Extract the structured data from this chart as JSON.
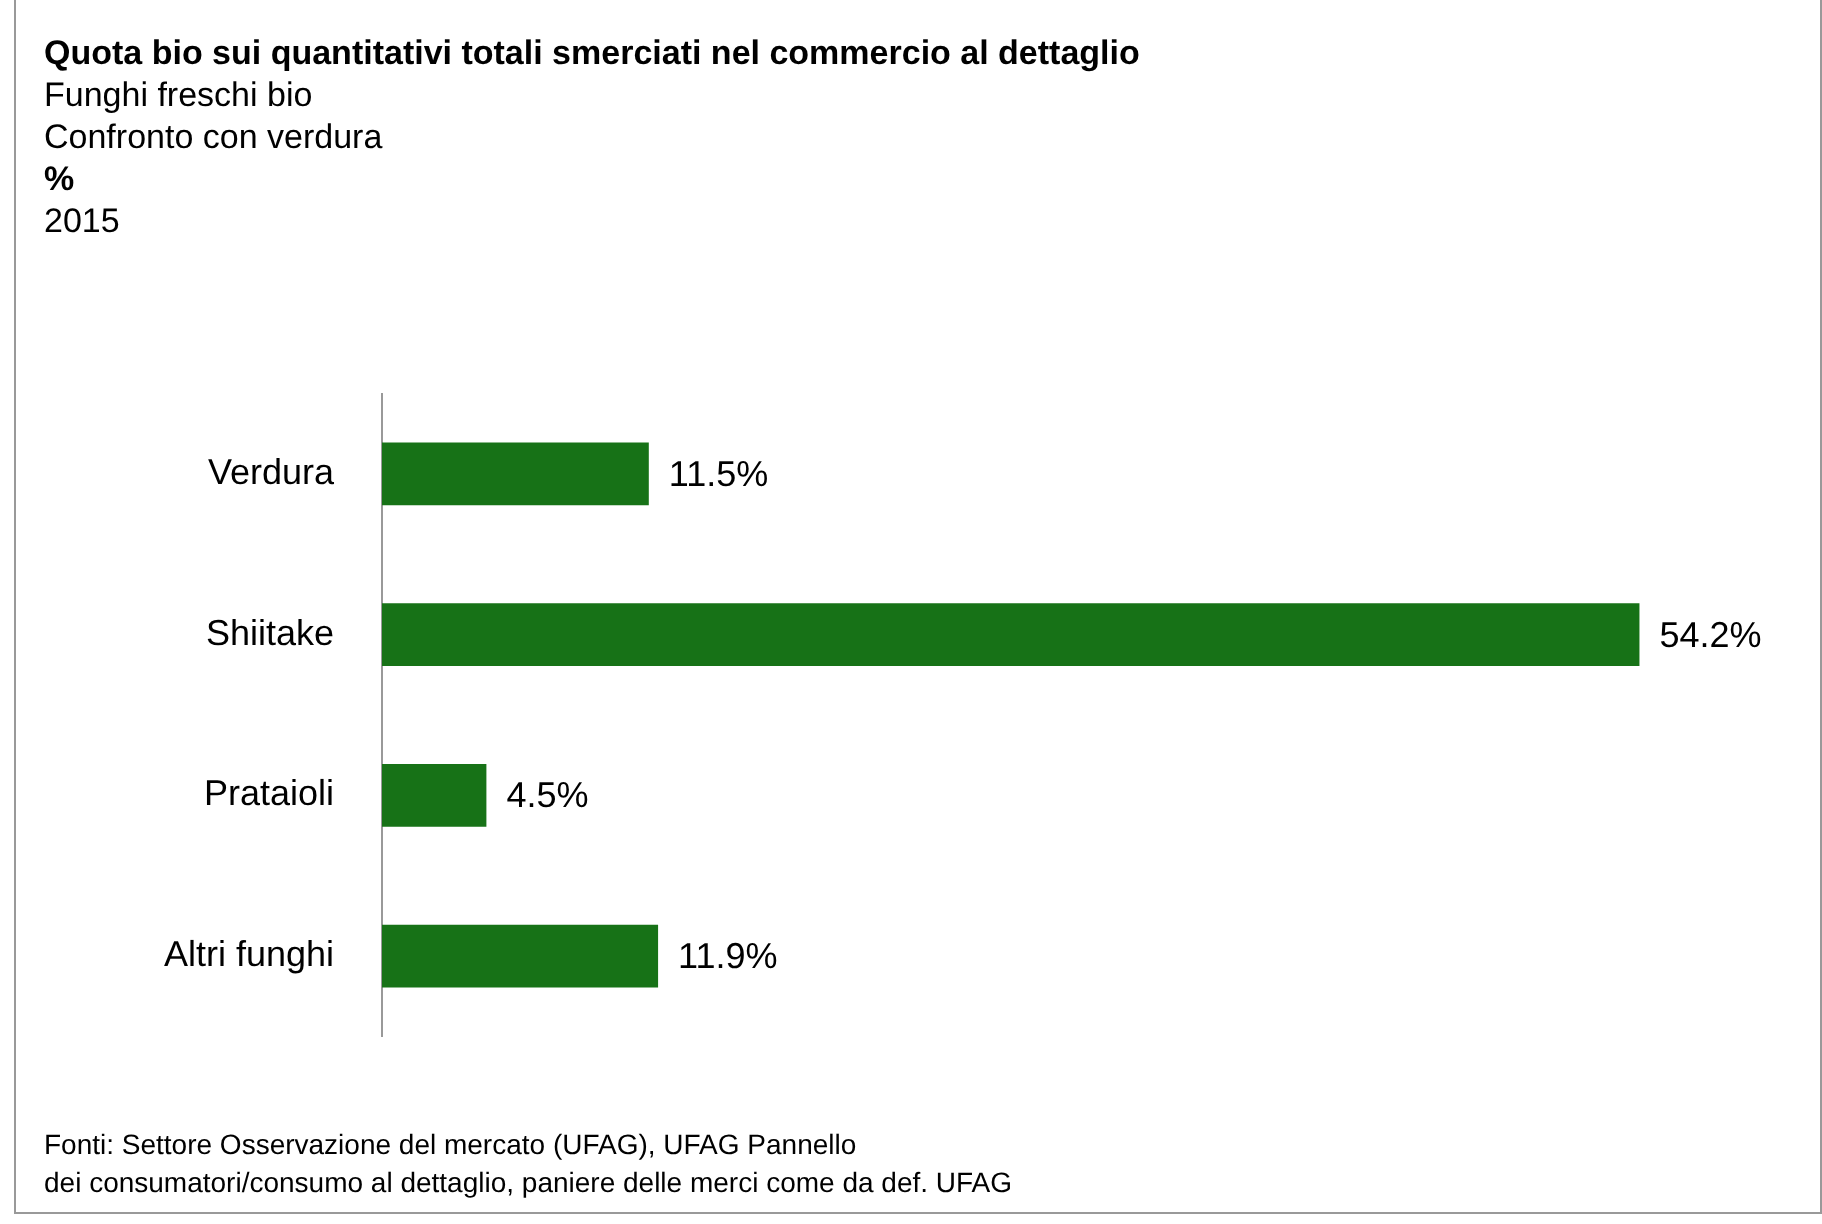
{
  "chart_data": {
    "type": "bar",
    "orientation": "horizontal",
    "title": "Quota bio sui quantitativi totali smerciati nel commercio al dettaglio",
    "subtitle": "Funghi freschi bio\nConfronto con verdura",
    "annotations": [
      "%",
      "2015",
      "Fonti: Settore Osservazione del mercato (UFAG), UFAG Pannello\ndei consumatori/consumo al dettaglio, paniere delle merci come da def. UFAG"
    ],
    "categories": [
      "Verdura",
      "Shiitake",
      "Prataioli",
      "Altri funghi"
    ],
    "values": [
      11.5,
      54.2,
      4.5,
      11.9
    ],
    "value_labels": [
      "11.5%",
      "54.2%",
      "4.5%",
      "11.9%"
    ],
    "color": "#177217"
  }
}
